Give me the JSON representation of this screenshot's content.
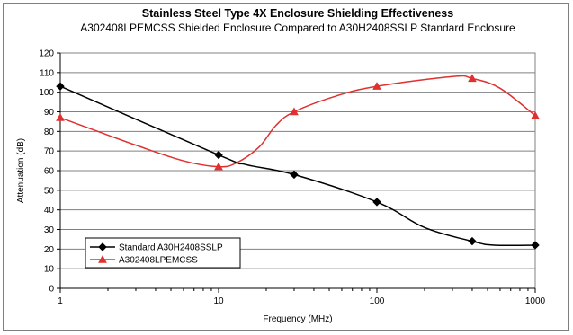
{
  "chart_data": {
    "type": "line",
    "title": "Stainless Steel Type 4X Enclosure Shielding Effectiveness",
    "subtitle": "A302408LPEMCSS Shielded Enclosure Compared to A30H2408SSLP Standard Enclosure",
    "xlabel": "Frequency (MHz)",
    "ylabel": "Attenuation (dB)",
    "x_scale": "log",
    "xlim": [
      1,
      1000
    ],
    "ylim": [
      0,
      120
    ],
    "x_ticks": [
      "1",
      "10",
      "100",
      "1000"
    ],
    "y_ticks": [
      "0",
      "10",
      "20",
      "30",
      "40",
      "50",
      "60",
      "70",
      "80",
      "90",
      "100",
      "110",
      "120"
    ],
    "grid": "horizontal",
    "legend_position": "lower-left",
    "series": [
      {
        "name": "Standard A30H2408SSLP",
        "color": "#000000",
        "marker": "diamond",
        "points": [
          {
            "x": 1,
            "y": 103,
            "marker": true
          },
          {
            "x": 10,
            "y": 68,
            "marker": true
          },
          {
            "x": 15,
            "y": 63,
            "marker": false
          },
          {
            "x": 30,
            "y": 58,
            "marker": true
          },
          {
            "x": 100,
            "y": 44,
            "marker": true
          },
          {
            "x": 200,
            "y": 31,
            "marker": false
          },
          {
            "x": 400,
            "y": 24,
            "marker": true
          },
          {
            "x": 550,
            "y": 22,
            "marker": false
          },
          {
            "x": 1000,
            "y": 22,
            "marker": true
          }
        ]
      },
      {
        "name": "A302408LPEMCSS",
        "color": "#e03030",
        "marker": "triangle",
        "points": [
          {
            "x": 1,
            "y": 87,
            "marker": true
          },
          {
            "x": 1.6,
            "y": 81,
            "marker": false
          },
          {
            "x": 3,
            "y": 73,
            "marker": false
          },
          {
            "x": 6,
            "y": 65,
            "marker": false
          },
          {
            "x": 10,
            "y": 62,
            "marker": true
          },
          {
            "x": 13,
            "y": 64,
            "marker": false
          },
          {
            "x": 18,
            "y": 72,
            "marker": false
          },
          {
            "x": 23,
            "y": 83,
            "marker": false
          },
          {
            "x": 30,
            "y": 90,
            "marker": true
          },
          {
            "x": 55,
            "y": 98,
            "marker": false
          },
          {
            "x": 100,
            "y": 103,
            "marker": true
          },
          {
            "x": 300,
            "y": 108,
            "marker": false
          },
          {
            "x": 400,
            "y": 107,
            "marker": true
          },
          {
            "x": 600,
            "y": 102,
            "marker": false
          },
          {
            "x": 1000,
            "y": 88,
            "marker": true
          }
        ]
      }
    ]
  }
}
